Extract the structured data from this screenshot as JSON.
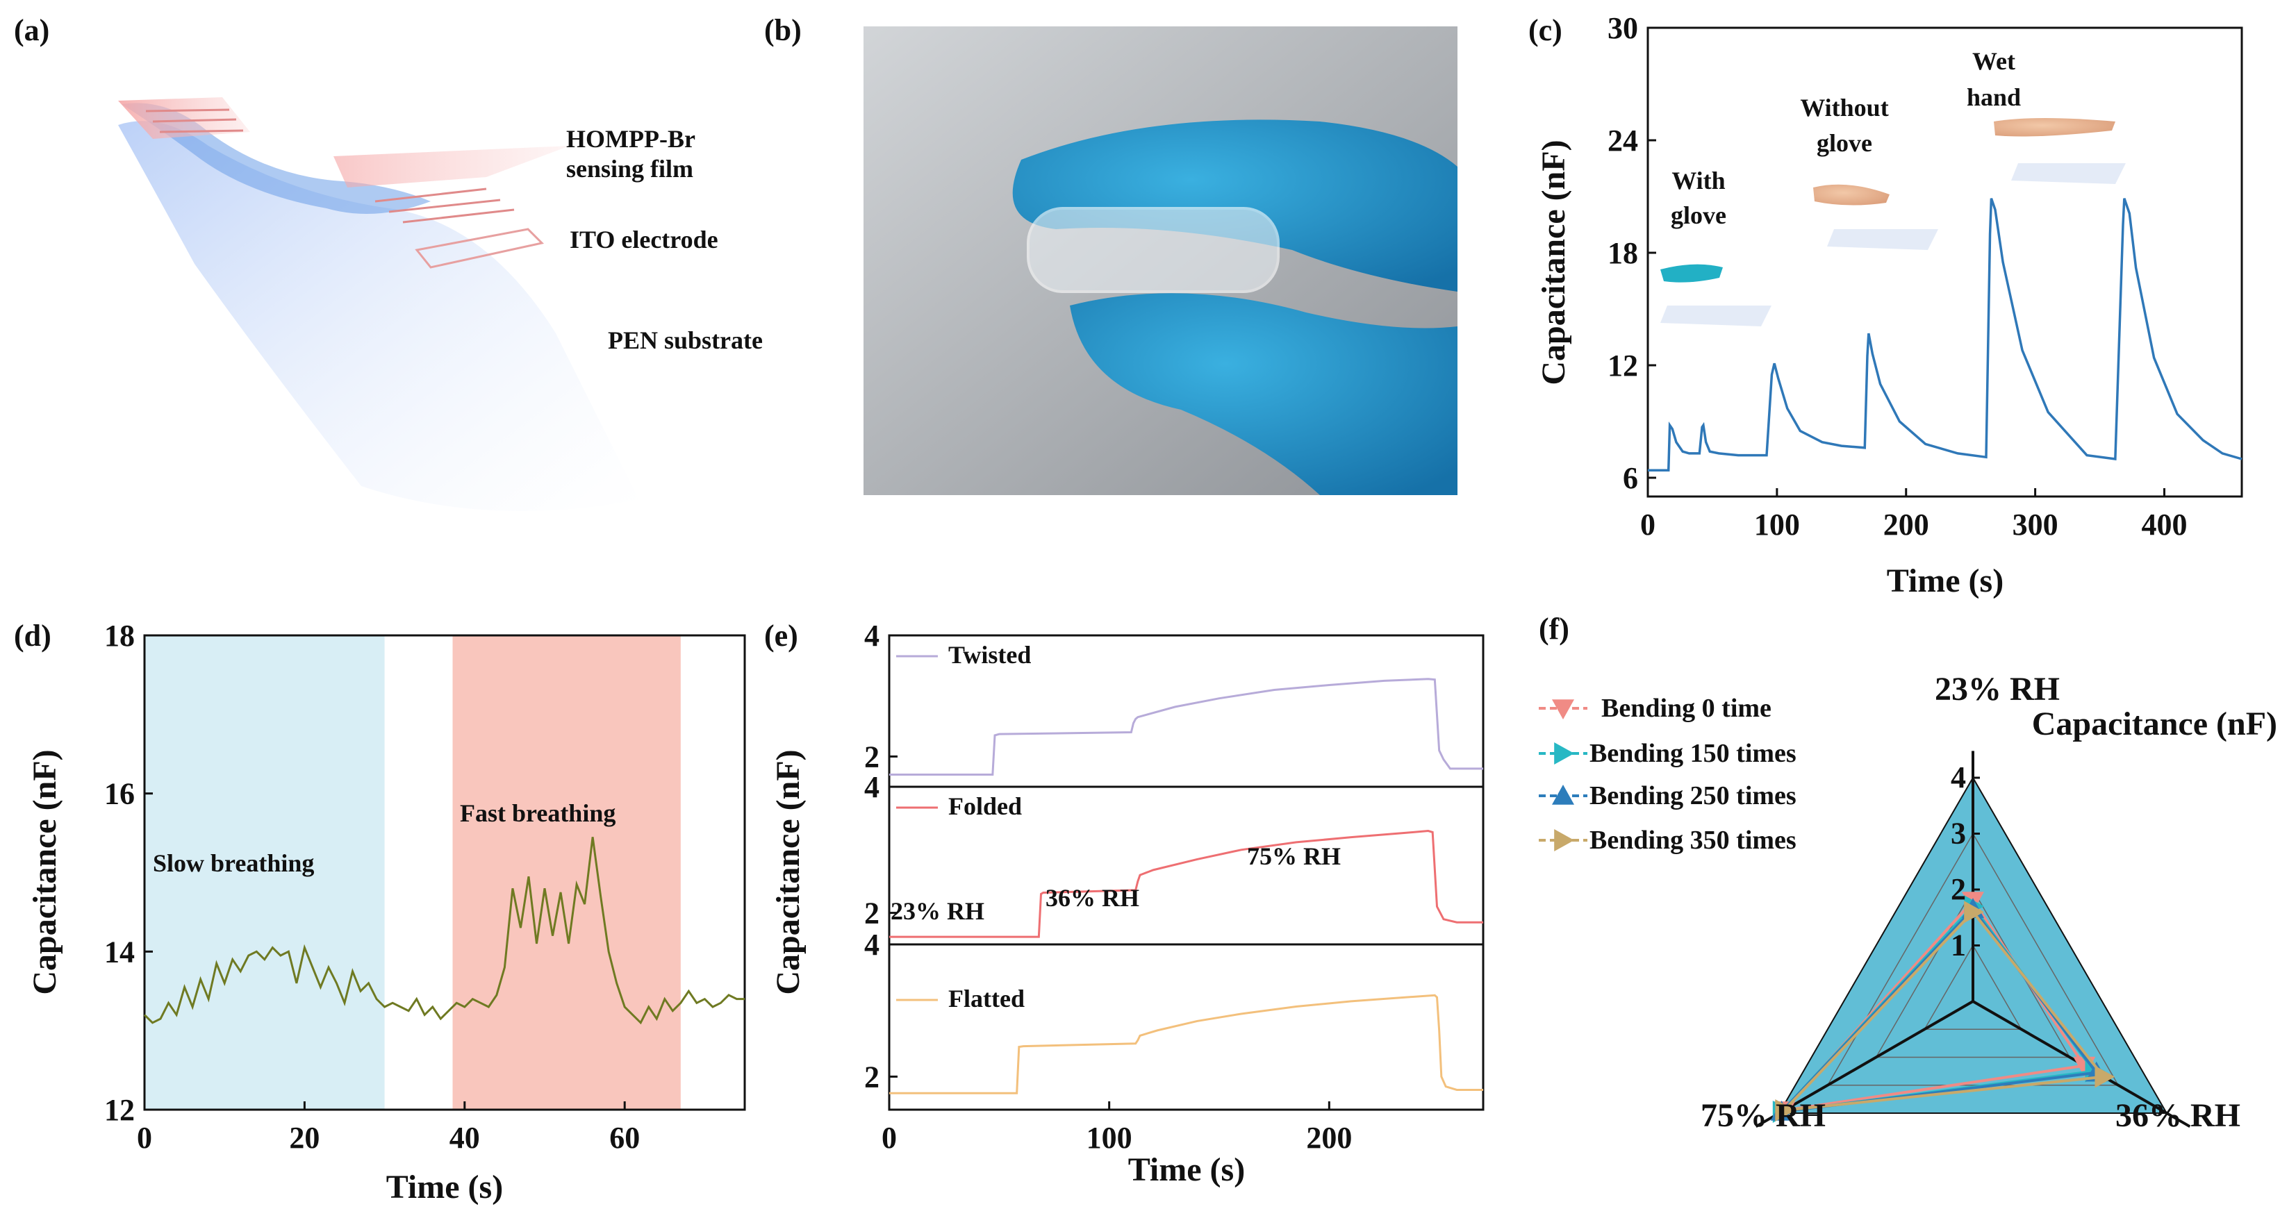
{
  "colors": {
    "c_line": "#2f78b8",
    "d_line": "#6f7a22",
    "d_slow_bg": "#d8eef5",
    "d_fast_bg": "#f9c6bd",
    "e_twisted": "#b7abd9",
    "e_folded": "#ee6f72",
    "e_flatted": "#f3c07c",
    "f_b0": "#f08b85",
    "f_b150": "#28b8c4",
    "f_b250": "#2d7dbb",
    "f_b350": "#c8a96a",
    "f_fill": "#45b3cf"
  },
  "panels": {
    "a": "(a)",
    "b": "(b)",
    "c": "(c)",
    "d": "(d)",
    "e": "(e)",
    "f": "(f)"
  },
  "panel_a": {
    "labels": [
      "HOMPP-Br",
      "sensing film",
      "ITO electrode",
      "PEN substrate"
    ]
  },
  "chart_data": [
    {
      "id": "c",
      "type": "line",
      "xlabel": "Time (s)",
      "ylabel": "Capacitance (nF)",
      "xlim": [
        0,
        460
      ],
      "ylim": [
        5,
        30
      ],
      "xticks": [
        "0",
        "100",
        "200",
        "300",
        "400"
      ],
      "yticks": [
        "6",
        "12",
        "18",
        "24",
        "30"
      ],
      "annotations": [
        {
          "lines": [
            "With",
            "glove"
          ]
        },
        {
          "lines": [
            "Without",
            "glove"
          ]
        },
        {
          "lines": [
            "Wet",
            "hand"
          ]
        }
      ],
      "x": [
        0,
        16,
        17,
        19,
        22,
        27,
        32,
        40,
        42,
        43,
        45,
        48,
        55,
        70,
        92,
        96,
        98,
        101,
        108,
        118,
        135,
        150,
        168,
        170,
        171,
        174,
        180,
        195,
        215,
        240,
        262,
        265,
        266,
        269,
        275,
        290,
        310,
        340,
        362,
        368,
        369,
        373,
        378,
        392,
        410,
        430,
        445,
        460
      ],
      "y": [
        6.4,
        6.4,
        8.8,
        8.6,
        7.9,
        7.4,
        7.3,
        7.3,
        8.7,
        8.8,
        7.9,
        7.4,
        7.3,
        7.2,
        7.2,
        11.5,
        12.1,
        11.3,
        9.7,
        8.5,
        7.9,
        7.7,
        7.6,
        12.5,
        13.7,
        12.6,
        11.0,
        9.0,
        7.8,
        7.3,
        7.1,
        19.0,
        20.9,
        20.3,
        17.5,
        12.8,
        9.5,
        7.2,
        7.0,
        19.5,
        20.9,
        20.1,
        17.2,
        12.4,
        9.4,
        8.0,
        7.3,
        7.0
      ]
    },
    {
      "id": "d",
      "type": "line",
      "xlabel": "Time (s)",
      "ylabel": "Capacitance (nF)",
      "xlim": [
        0,
        75
      ],
      "ylim": [
        12,
        18
      ],
      "xticks": [
        "0",
        "20",
        "40",
        "60"
      ],
      "yticks": [
        "12",
        "14",
        "16",
        "18"
      ],
      "regions": [
        {
          "name": "Slow breathing",
          "from": 0,
          "to": 30
        },
        {
          "name": "Fast breathing",
          "from": 38.5,
          "to": 67
        }
      ],
      "x": [
        0,
        1,
        2,
        3,
        4,
        5,
        6,
        7,
        8,
        9,
        10,
        11,
        12,
        13,
        14,
        15,
        16,
        17,
        18,
        19,
        20,
        21,
        22,
        23,
        24,
        25,
        26,
        27,
        28,
        29,
        30,
        31,
        32,
        33,
        34,
        35,
        36,
        37,
        38,
        39,
        40,
        41,
        42,
        43,
        44,
        45,
        46,
        47,
        48,
        49,
        50,
        51,
        52,
        53,
        54,
        55,
        56,
        57,
        58,
        59,
        60,
        61,
        62,
        63,
        64,
        65,
        66,
        67,
        68,
        69,
        70,
        71,
        72,
        73,
        74,
        75
      ],
      "y": [
        13.2,
        13.1,
        13.15,
        13.35,
        13.2,
        13.55,
        13.3,
        13.65,
        13.4,
        13.85,
        13.6,
        13.9,
        13.75,
        13.95,
        14.0,
        13.9,
        14.05,
        13.95,
        14.0,
        13.6,
        14.05,
        13.8,
        13.55,
        13.8,
        13.6,
        13.35,
        13.75,
        13.5,
        13.6,
        13.4,
        13.3,
        13.35,
        13.3,
        13.25,
        13.4,
        13.2,
        13.3,
        13.15,
        13.25,
        13.35,
        13.3,
        13.4,
        13.35,
        13.3,
        13.45,
        13.8,
        14.8,
        14.3,
        14.95,
        14.1,
        14.8,
        14.2,
        14.75,
        14.1,
        14.85,
        14.6,
        15.45,
        14.7,
        14.0,
        13.6,
        13.3,
        13.2,
        13.1,
        13.3,
        13.15,
        13.4,
        13.25,
        13.35,
        13.5,
        13.35,
        13.4,
        13.3,
        13.35,
        13.45,
        13.4,
        13.4
      ]
    },
    {
      "id": "e",
      "type": "line",
      "xlabel": "Time (s)",
      "ylabel": "Capacitance (nF)",
      "xlim": [
        0,
        270
      ],
      "ylim": [
        1.5,
        4
      ],
      "xticks": [
        "0",
        "100",
        "200"
      ],
      "yticks": [
        "2",
        "4"
      ],
      "annotations": [
        {
          "text": "23% RH"
        },
        {
          "text": "36% RH"
        },
        {
          "text": "75% RH"
        }
      ],
      "series": [
        {
          "name": "Twisted",
          "x": [
            0,
            47,
            48,
            50,
            110,
            111,
            112,
            113,
            130,
            150,
            175,
            200,
            225,
            245,
            248,
            250,
            252,
            255,
            262,
            270
          ],
          "y": [
            1.7,
            1.7,
            2.35,
            2.37,
            2.4,
            2.55,
            2.62,
            2.65,
            2.82,
            2.96,
            3.1,
            3.18,
            3.25,
            3.28,
            3.27,
            2.1,
            1.95,
            1.8,
            1.8,
            1.8
          ]
        },
        {
          "name": "Folded",
          "x": [
            0,
            68,
            69,
            70,
            112,
            113,
            114,
            120,
            140,
            160,
            185,
            210,
            235,
            245,
            247,
            249,
            252,
            258,
            270
          ],
          "y": [
            1.62,
            1.62,
            2.3,
            2.32,
            2.36,
            2.5,
            2.6,
            2.68,
            2.85,
            3.0,
            3.12,
            3.2,
            3.27,
            3.3,
            3.28,
            2.1,
            1.9,
            1.85,
            1.85
          ]
        },
        {
          "name": "Flatted",
          "x": [
            0,
            58,
            59,
            61,
            112,
            113,
            114,
            122,
            140,
            160,
            185,
            210,
            235,
            248,
            249,
            250,
            251,
            253,
            258,
            270
          ],
          "y": [
            1.75,
            1.75,
            2.45,
            2.46,
            2.5,
            2.55,
            2.62,
            2.7,
            2.84,
            2.95,
            3.06,
            3.14,
            3.2,
            3.23,
            3.2,
            2.7,
            2.0,
            1.85,
            1.8,
            1.8
          ]
        }
      ]
    },
    {
      "id": "f",
      "type": "radar",
      "title": "Capacitance (nF)",
      "axes": [
        "23% RH",
        "36% RH",
        "75% RH"
      ],
      "rlim": [
        0,
        4
      ],
      "rticks": [
        "1",
        "2",
        "3",
        "4"
      ],
      "series": [
        {
          "name": "Bending 0 time",
          "marker": "triangle-down",
          "values": [
            1.8,
            2.3,
            3.9
          ]
        },
        {
          "name": "Bending 150 times",
          "marker": "triangle-right",
          "values": [
            1.7,
            2.5,
            3.95
          ]
        },
        {
          "name": "Bending 250 times",
          "marker": "triangle-up",
          "values": [
            1.65,
            2.55,
            3.95
          ]
        },
        {
          "name": "Bending 350 times",
          "marker": "triangle-right",
          "values": [
            1.6,
            2.7,
            3.9
          ]
        }
      ]
    }
  ]
}
